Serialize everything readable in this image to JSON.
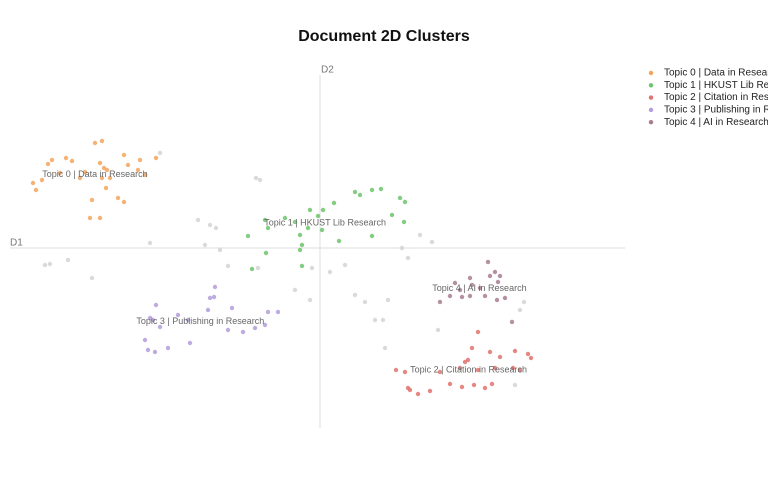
{
  "chart_data": {
    "type": "scatter",
    "title": "Document 2D Clusters",
    "xlabel": "D1",
    "ylabel": "D2",
    "xlim": [
      -31,
      30.5
    ],
    "ylim": [
      -18,
      17.3
    ],
    "series": [
      {
        "color": "#d4d4d4",
        "x": [
          -27.5,
          -27.0,
          -25.2,
          -22.8,
          -17.0,
          -16.0,
          -12.2,
          -11.0,
          -10.4,
          -11.5,
          -10.0,
          -9.2,
          -6.4,
          -6.0,
          -6.2,
          -2.5,
          -1.0,
          -0.8,
          1.0,
          2.5,
          3.5,
          4.5,
          5.5,
          6.3,
          6.5,
          6.8,
          8.2,
          8.8,
          10.0,
          11.2,
          11.8,
          19.5,
          20.0,
          20.4
        ],
        "values": [
          -1.7,
          -1.6,
          -1.2,
          -3.0,
          0.5,
          9.5,
          2.8,
          2.3,
          2.0,
          0.3,
          -0.2,
          -1.8,
          7.0,
          6.8,
          -2.0,
          -4.2,
          -5.2,
          -2.0,
          -2.4,
          -1.7,
          -4.7,
          -5.4,
          -7.2,
          -7.2,
          -10.0,
          -5.2,
          0.0,
          -1.0,
          1.3,
          0.6,
          -8.2,
          -13.7,
          -6.2,
          -5.4
        ]
      },
      {
        "name": "Topic 0 | Data in Research",
        "color": "#f5a35c",
        "x": [
          -28.7,
          -28.4,
          -27.8,
          -27.2,
          -26.8,
          -25.4,
          -24.8,
          -24.0,
          -22.5,
          -21.8,
          -22.0,
          -21.6,
          -21.3,
          -22.8,
          -21.8,
          -21.4,
          -21.0,
          -19.6,
          -19.2,
          -18.0,
          -18.2,
          -17.5,
          -16.4,
          -23.0,
          -22.0,
          -20.2,
          -19.6,
          -26.0,
          -23.5
        ],
        "values": [
          6.5,
          5.8,
          6.8,
          8.4,
          8.8,
          9.0,
          8.7,
          7.0,
          10.5,
          10.7,
          8.5,
          8.0,
          7.8,
          4.8,
          7.0,
          6.0,
          7.0,
          9.3,
          8.3,
          8.8,
          7.8,
          7.3,
          9.0,
          3.0,
          3.0,
          5.0,
          4.6,
          7.5,
          7.6
        ]
      },
      {
        "name": "Topic 1 | HKUST Lib Research",
        "color": "#6cc46c",
        "x": [
          -5.5,
          -7.2,
          -5.2,
          -6.8,
          -5.4,
          -3.5,
          -2.5,
          -2.0,
          -1.8,
          -2.0,
          -1.0,
          -0.2,
          0.3,
          0.2,
          1.4,
          3.5,
          4.0,
          5.2,
          6.1,
          8.0,
          8.5,
          7.2,
          8.4,
          5.2,
          1.9,
          -1.2,
          -1.8
        ],
        "values": [
          2.8,
          1.2,
          2.0,
          -2.1,
          -0.5,
          3.0,
          2.6,
          1.3,
          0.3,
          -0.2,
          3.8,
          3.2,
          3.8,
          1.8,
          4.5,
          5.6,
          5.3,
          5.8,
          5.9,
          5.0,
          4.6,
          3.3,
          2.6,
          1.2,
          0.7,
          2.0,
          -1.8
        ]
      },
      {
        "name": "Topic 2 | Citation in Research",
        "color": "#e0736e",
        "x": [
          7.6,
          8.8,
          9.0,
          9.8,
          11.0,
          8.5,
          13.0,
          14.2,
          15.4,
          16.5,
          17.2,
          14.0,
          14.5,
          15.2,
          15.8,
          17.0,
          18.0,
          19.5,
          20.8,
          21.1,
          19.3,
          20.0,
          12.0,
          15.8,
          17.5,
          14.8
        ],
        "values": [
          -12.2,
          -14.0,
          -14.2,
          -14.6,
          -14.3,
          -12.4,
          -13.6,
          -13.9,
          -13.7,
          -14.0,
          -13.6,
          -12.0,
          -11.4,
          -10.0,
          -8.4,
          -10.4,
          -10.9,
          -10.3,
          -10.6,
          -11.0,
          -12.0,
          -12.2,
          -12.4,
          -12.2,
          -12.0,
          -11.2
        ]
      },
      {
        "name": "Topic 3 | Publishing in Research",
        "color": "#b39ddb",
        "x": [
          -16.4,
          -16.7,
          -17.5,
          -17.2,
          -16.5,
          -15.2,
          -13.0,
          -14.2,
          -13.2,
          -11.2,
          -11.0,
          -10.5,
          -10.6,
          -8.8,
          -9.2,
          -7.7,
          -6.5,
          -5.5,
          -5.2,
          -4.2,
          -17.0,
          -16.0
        ],
        "values": [
          -5.7,
          -7.2,
          -9.2,
          -10.2,
          -10.4,
          -10.0,
          -9.5,
          -6.7,
          -7.2,
          -6.2,
          -5.0,
          -3.9,
          -4.9,
          -6.0,
          -8.2,
          -8.4,
          -8.0,
          -7.7,
          -6.4,
          -6.4,
          -7.0,
          -7.9
        ]
      },
      {
        "name": "Topic 4 | AI in Research",
        "color": "#a87d92",
        "x": [
          12.0,
          13.0,
          13.5,
          14.0,
          15.0,
          15.2,
          16.0,
          16.8,
          17.0,
          17.5,
          17.8,
          18.0,
          14.2,
          16.5,
          17.7,
          18.5,
          19.2,
          15.0
        ],
        "values": [
          -5.4,
          -4.8,
          -3.5,
          -4.2,
          -3.0,
          -3.7,
          -4.0,
          -1.4,
          -2.8,
          -2.4,
          -3.4,
          -2.8,
          -4.9,
          -4.8,
          -5.2,
          -5.0,
          -7.4,
          -4.8
        ]
      }
    ]
  }
}
